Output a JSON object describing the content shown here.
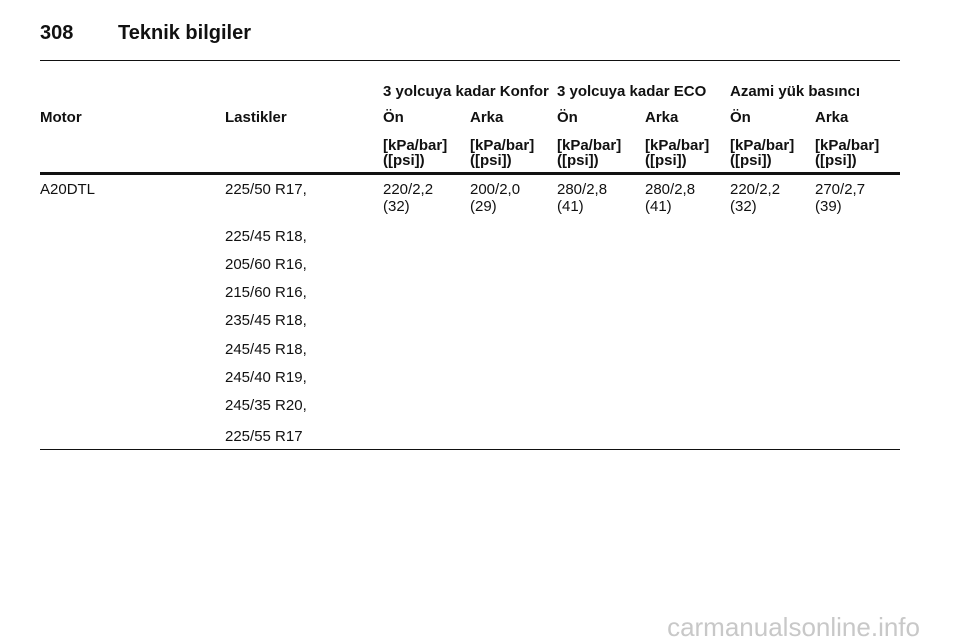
{
  "header": {
    "page_number": "308",
    "title": "Teknik bilgiler"
  },
  "table": {
    "group_headers": [
      "3 yolcuya kadar Konfor",
      "3 yolcuya kadar ECO",
      "Azami yük basıncı"
    ],
    "columns": [
      "Motor",
      "Lastikler",
      "Ön",
      "Arka",
      "Ön",
      "Arka",
      "Ön",
      "Arka"
    ],
    "units": [
      [
        "[kPa/bar]",
        "([psi])"
      ],
      [
        "[kPa/bar]",
        "([psi])"
      ],
      [
        "[kPa/bar]",
        "([psi])"
      ],
      [
        "[kPa/bar]",
        "([psi])"
      ],
      [
        "[kPa/bar]",
        "([psi])"
      ],
      [
        "[kPa/bar]",
        "([psi])"
      ]
    ],
    "rows": [
      {
        "motor": "A20DTL",
        "tires": [
          "225/50 R17,",
          "225/45 R18,",
          "205/60 R16,",
          "215/60 R16,",
          "235/45 R18,",
          "245/45 R18,",
          "245/40 R19,",
          "245/35 R20,",
          "225/55 R17"
        ],
        "pressures": [
          [
            "220/2,2",
            "(32)"
          ],
          [
            "200/2,0",
            "(29)"
          ],
          [
            "280/2,8",
            "(41)"
          ],
          [
            "280/2,8",
            "(41)"
          ],
          [
            "220/2,2",
            "(32)"
          ],
          [
            "270/2,7",
            "(39)"
          ]
        ]
      }
    ]
  },
  "watermark": "carmanualsonline.info"
}
